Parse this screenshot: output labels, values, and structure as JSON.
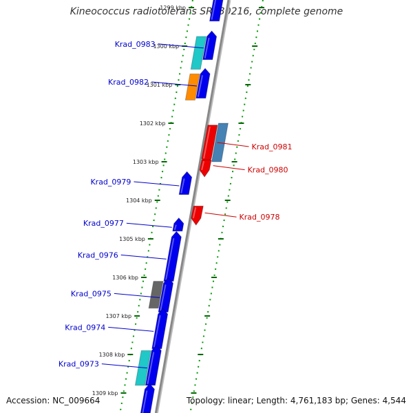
{
  "title": "Kineococcus radiotolerans SRS30216, complete genome",
  "footer": {
    "accession": "Accession: NC_009664",
    "summary": "Topology: linear; Length: 4,761,183 bp; Genes: 4,544"
  },
  "colors": {
    "forward_gene": "#0000ee",
    "reverse_gene": "#ee0000",
    "forward_label": "#0000cc",
    "reverse_label": "#cc0000",
    "axis_tick": "#006600",
    "axis_dot": "#009900",
    "backbone": "#888888",
    "feature_cyan": "#20c8c8",
    "feature_orange": "#ff8c00",
    "feature_steelblue": "#4682b4",
    "feature_gray": "#666666"
  },
  "axis": {
    "unit": "kbp",
    "ticks": [
      {
        "kbp": 1299,
        "label": "1299 kbp"
      },
      {
        "kbp": 1300,
        "label": "1300 kbp"
      },
      {
        "kbp": 1301,
        "label": "1301 kbp"
      },
      {
        "kbp": 1302,
        "label": "1302 kbp"
      },
      {
        "kbp": 1303,
        "label": "1303 kbp"
      },
      {
        "kbp": 1304,
        "label": "1304 kbp"
      },
      {
        "kbp": 1305,
        "label": "1305 kbp"
      },
      {
        "kbp": 1306,
        "label": "1306 kbp"
      },
      {
        "kbp": 1307,
        "label": "1307 kbp"
      },
      {
        "kbp": 1308,
        "label": "1308 kbp"
      },
      {
        "kbp": 1309,
        "label": "1309 kbp"
      }
    ]
  },
  "genes": [
    {
      "name": "Krad_0983",
      "strand": "+",
      "start_kbp": 1299.75,
      "end_kbp": 1300.35
    },
    {
      "name": "Krad_0982",
      "strand": "+",
      "start_kbp": 1300.72,
      "end_kbp": 1301.35
    },
    {
      "name": "Krad_0981",
      "strand": "-",
      "start_kbp": 1302.05,
      "end_kbp": 1302.95
    },
    {
      "name": "Krad_0980",
      "strand": "-",
      "start_kbp": 1302.95,
      "end_kbp": 1303.25
    },
    {
      "name": "Krad_0979",
      "strand": "+",
      "start_kbp": 1303.4,
      "end_kbp": 1303.85
    },
    {
      "name": "Krad_0978",
      "strand": "-",
      "start_kbp": 1304.15,
      "end_kbp": 1304.5
    },
    {
      "name": "Krad_0977",
      "strand": "+",
      "start_kbp": 1304.6,
      "end_kbp": 1304.8
    },
    {
      "name": "Krad_0976",
      "strand": "+",
      "start_kbp": 1304.95,
      "end_kbp": 1306.1
    },
    {
      "name": "Krad_0975",
      "strand": "+",
      "start_kbp": 1306.15,
      "end_kbp": 1306.9
    },
    {
      "name": "Krad_0974",
      "strand": "+",
      "start_kbp": 1306.95,
      "end_kbp": 1307.85
    },
    {
      "name": "Krad_0973",
      "strand": "+",
      "start_kbp": 1307.9,
      "end_kbp": 1308.8
    },
    {
      "name": "",
      "strand": "+",
      "start_kbp": 1308.9,
      "end_kbp": 1310.0
    },
    {
      "name": "",
      "strand": "+",
      "start_kbp": 1298.5,
      "end_kbp": 1299.35
    }
  ],
  "features": [
    {
      "color": "feature_cyan",
      "start_kbp": 1299.75,
      "end_kbp": 1300.6
    },
    {
      "color": "feature_orange",
      "start_kbp": 1300.72,
      "end_kbp": 1301.4
    },
    {
      "color": "feature_steelblue",
      "start_kbp": 1302.0,
      "end_kbp": 1303.0
    },
    {
      "color": "feature_gray",
      "start_kbp": 1306.1,
      "end_kbp": 1306.8
    },
    {
      "color": "feature_cyan",
      "start_kbp": 1307.9,
      "end_kbp": 1308.8
    }
  ]
}
